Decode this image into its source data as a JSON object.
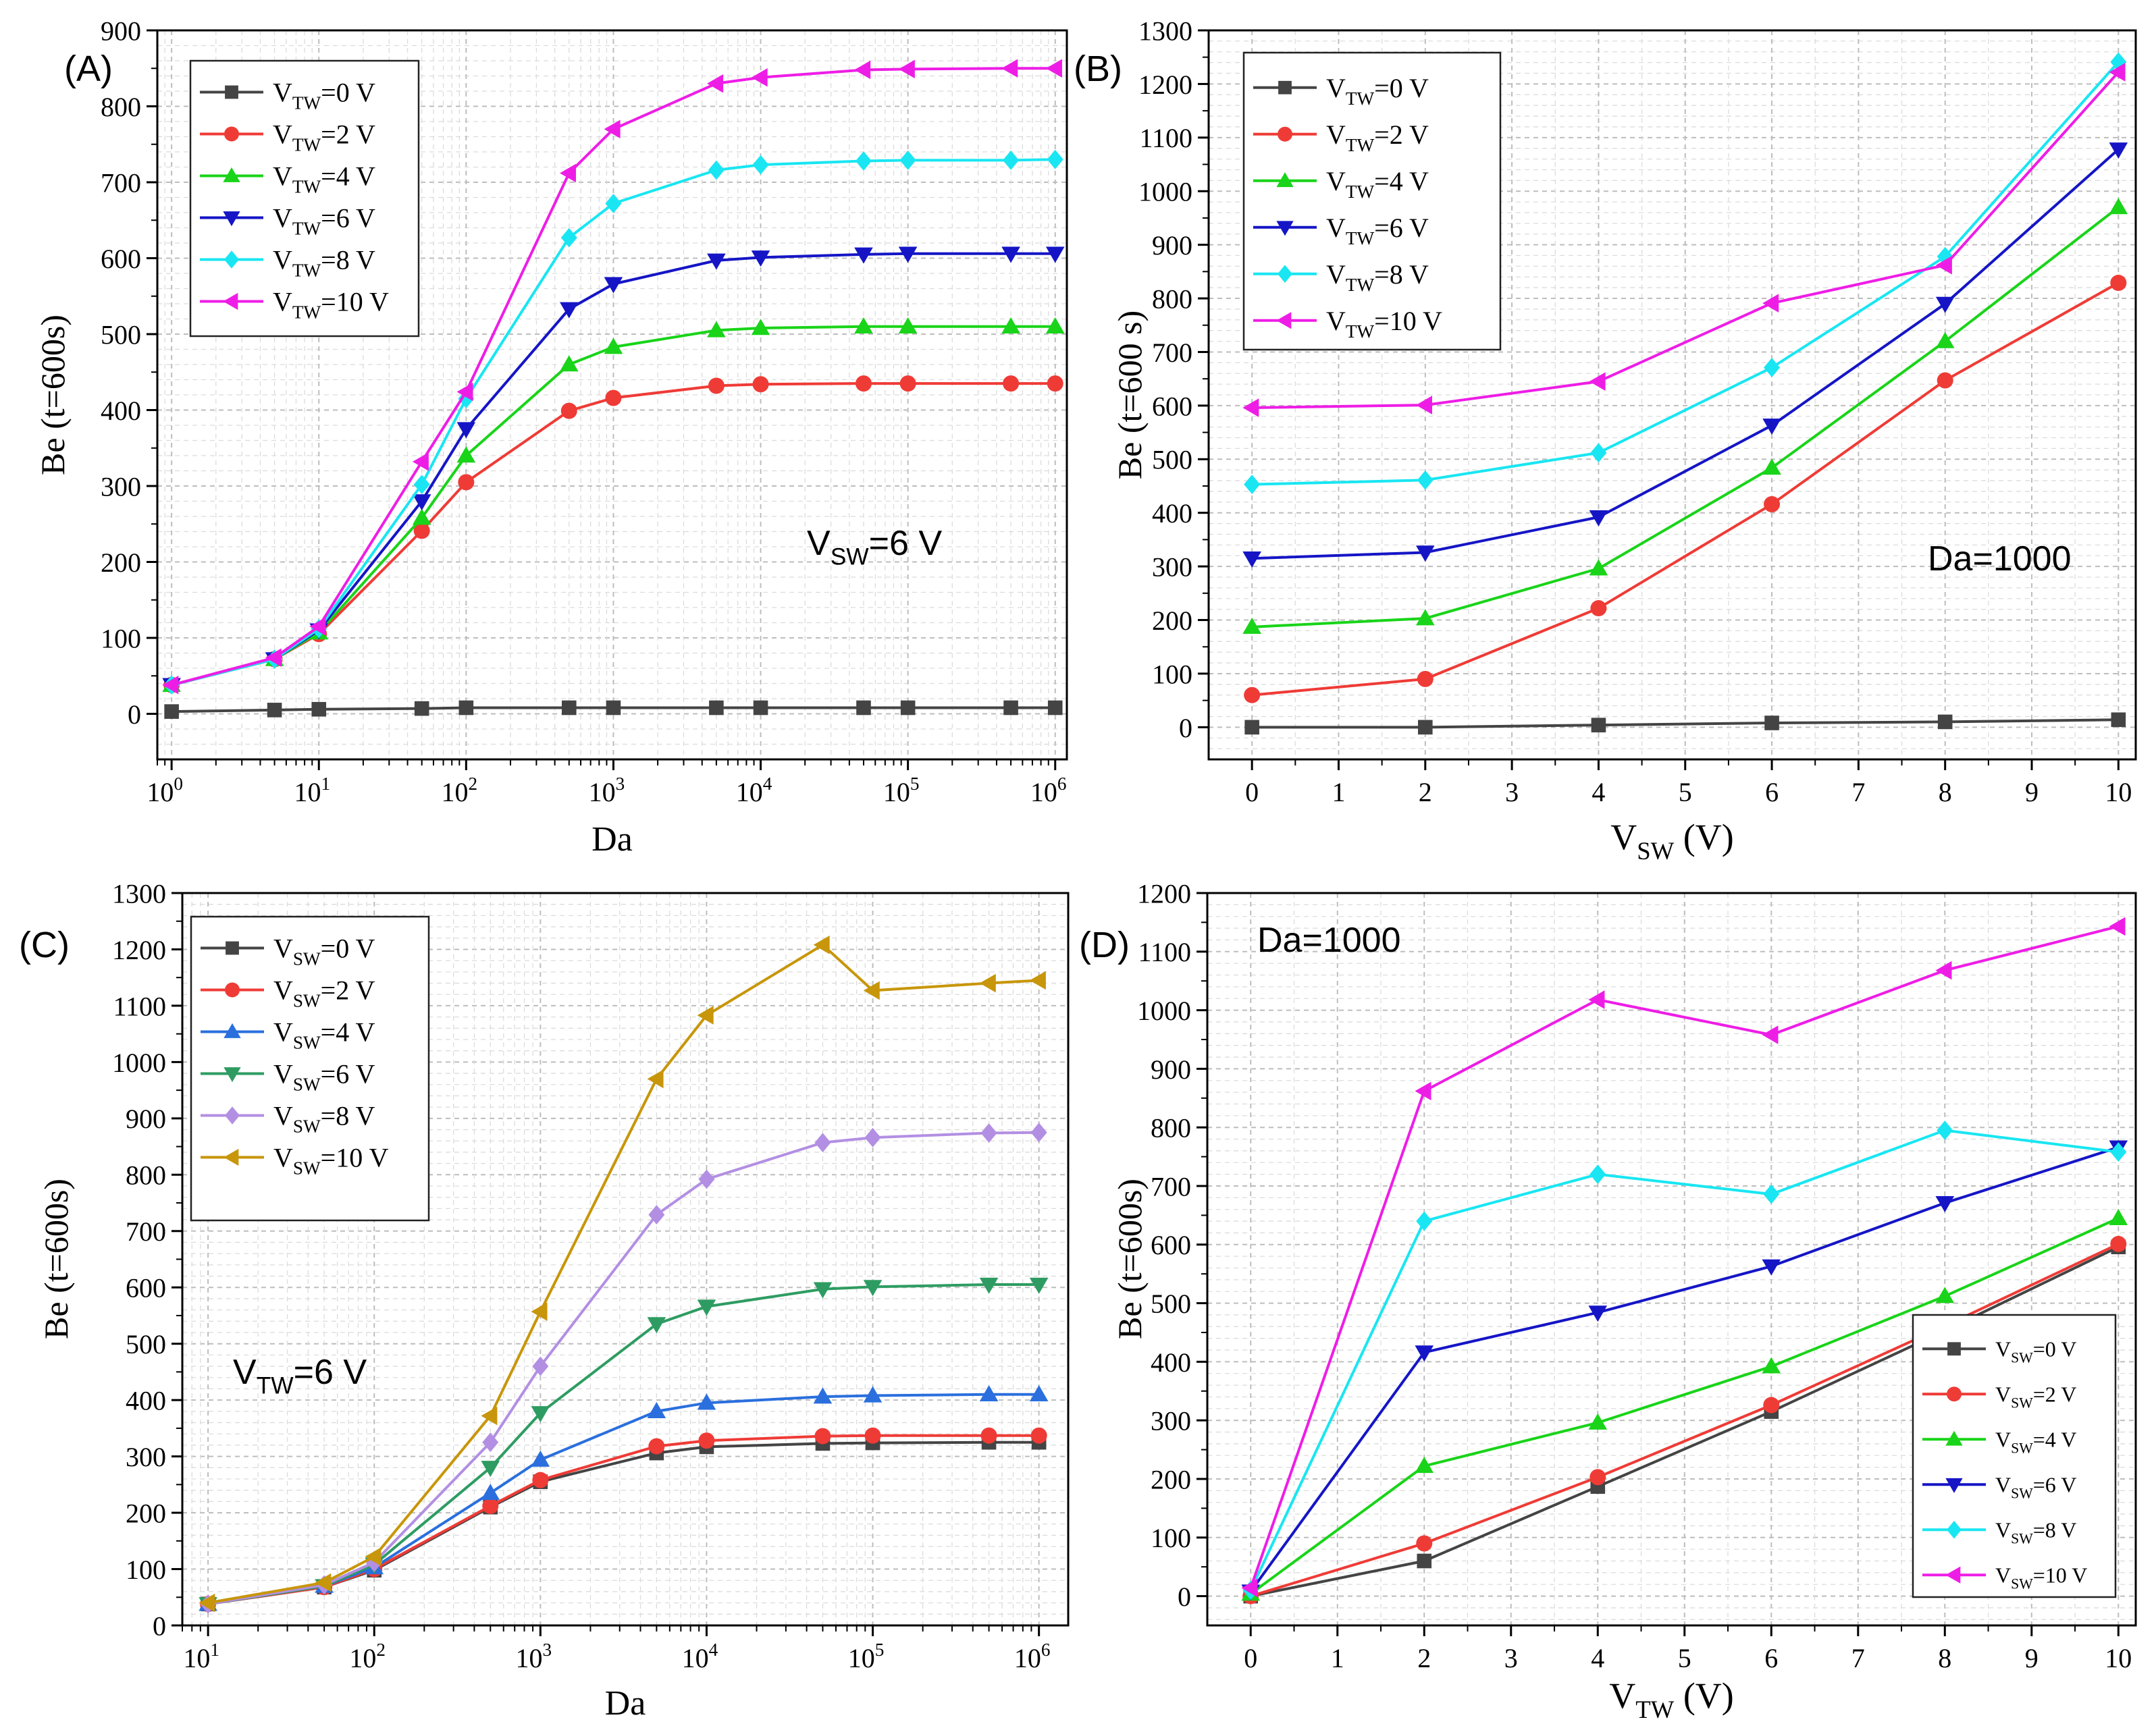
{
  "figure": {
    "description_panels": [
      "A",
      "B",
      "C",
      "D"
    ]
  },
  "chart_data": [
    {
      "id": "A",
      "type": "line",
      "panel_label": "(A)",
      "xscale": "log",
      "xlabel": "Da",
      "ylabel": "Be (t=600s)",
      "xlim": [
        0.8,
        1200000
      ],
      "ylim": [
        -60,
        900
      ],
      "yticks": [
        0,
        100,
        200,
        300,
        400,
        500,
        600,
        700,
        800,
        900
      ],
      "xticks": [
        1,
        10,
        100,
        1000,
        10000,
        100000,
        1000000
      ],
      "xtick_base": "10",
      "xtick_exponents": [
        "0",
        "1",
        "2",
        "3",
        "4",
        "5",
        "6"
      ],
      "annotation": {
        "main": "V",
        "sub": "SW",
        "rest": "=6 V"
      },
      "legend_position": "top-left",
      "x": [
        1,
        5,
        10,
        50,
        100,
        500,
        1000,
        5000,
        10000,
        50000,
        100000,
        500000,
        1000000
      ],
      "series": [
        {
          "name": "VTW=0 V",
          "legend_main": "V",
          "legend_sub": "TW",
          "legend_rest": "=0 V",
          "color": "#444444",
          "marker": "square",
          "values": [
            3,
            5,
            6,
            7,
            8,
            8,
            8,
            8,
            8,
            8,
            8,
            8,
            8
          ]
        },
        {
          "name": "VTW=2 V",
          "legend_main": "V",
          "legend_sub": "TW",
          "legend_rest": "=2 V",
          "color": "#ef3b36",
          "marker": "circle",
          "values": [
            38,
            72,
            105,
            241,
            305,
            399,
            416,
            432,
            434,
            435,
            435,
            435,
            435
          ]
        },
        {
          "name": "VTW=4 V",
          "legend_main": "V",
          "legend_sub": "TW",
          "legend_rest": "=4 V",
          "color": "#19d419",
          "marker": "triangle-up",
          "values": [
            38,
            72,
            107,
            258,
            340,
            460,
            483,
            505,
            508,
            510,
            510,
            510,
            510
          ]
        },
        {
          "name": "VTW=6 V",
          "legend_main": "V",
          "legend_sub": "TW",
          "legend_rest": "=6 V",
          "color": "#1515c6",
          "marker": "triangle-down",
          "values": [
            38,
            72,
            110,
            280,
            375,
            533,
            566,
            597,
            601,
            605,
            606,
            606,
            606
          ]
        },
        {
          "name": "VTW=8 V",
          "legend_main": "V",
          "legend_sub": "TW",
          "legend_rest": "=8 V",
          "color": "#19e6f2",
          "marker": "diamond",
          "values": [
            38,
            72,
            112,
            302,
            415,
            627,
            672,
            716,
            723,
            728,
            729,
            729,
            730
          ]
        },
        {
          "name": "VTW=10 V",
          "legend_main": "V",
          "legend_sub": "TW",
          "legend_rest": "=10 V",
          "color": "#ee1de6",
          "marker": "triangle-left",
          "values": [
            38,
            74,
            115,
            332,
            424,
            712,
            770,
            830,
            838,
            848,
            849,
            850,
            850
          ]
        }
      ]
    },
    {
      "id": "B",
      "type": "line",
      "panel_label": "(B)",
      "xscale": "linear",
      "xlabel": {
        "main": "V",
        "sub": "SW",
        "rest": " (V)"
      },
      "ylabel": "Be (t=600 s)",
      "xlim": [
        -0.5,
        10.2
      ],
      "ylim": [
        -60,
        1300
      ],
      "yticks": [
        0,
        100,
        200,
        300,
        400,
        500,
        600,
        700,
        800,
        900,
        1000,
        1100,
        1200,
        1300
      ],
      "xticks": [
        0,
        1,
        2,
        3,
        4,
        5,
        6,
        7,
        8,
        9,
        10
      ],
      "xtick_labels": [
        "0",
        "1",
        "2",
        "3",
        "4",
        "5",
        "6",
        "7",
        "8",
        "9",
        "10"
      ],
      "annotation": {
        "main": "Da=1000",
        "sub": "",
        "rest": ""
      },
      "legend_position": "top-left",
      "x": [
        0,
        2,
        4,
        6,
        8,
        10
      ],
      "series": [
        {
          "name": "VTW=0 V",
          "legend_main": "V",
          "legend_sub": "TW",
          "legend_rest": "=0 V",
          "color": "#444444",
          "marker": "square",
          "values": [
            0,
            0,
            4,
            8,
            10,
            14
          ]
        },
        {
          "name": "VTW=2 V",
          "legend_main": "V",
          "legend_sub": "TW",
          "legend_rest": "=2 V",
          "color": "#ef3b36",
          "marker": "circle",
          "values": [
            60,
            90,
            222,
            416,
            647,
            829
          ]
        },
        {
          "name": "VTW=4 V",
          "legend_main": "V",
          "legend_sub": "TW",
          "legend_rest": "=4 V",
          "color": "#19d419",
          "marker": "triangle-up",
          "values": [
            187,
            203,
            296,
            484,
            720,
            970
          ]
        },
        {
          "name": "VTW=6 V",
          "legend_main": "V",
          "legend_sub": "TW",
          "legend_rest": "=6 V",
          "color": "#1515c6",
          "marker": "triangle-down",
          "values": [
            315,
            326,
            392,
            563,
            790,
            1078
          ]
        },
        {
          "name": "VTW=8 V",
          "legend_main": "V",
          "legend_sub": "TW",
          "legend_rest": "=8 V",
          "color": "#19e6f2",
          "marker": "diamond",
          "values": [
            453,
            461,
            512,
            671,
            878,
            1241
          ]
        },
        {
          "name": "VTW=10 V",
          "legend_main": "V",
          "legend_sub": "TW",
          "legend_rest": "=10 V",
          "color": "#ee1de6",
          "marker": "triangle-left",
          "values": [
            596,
            601,
            645,
            791,
            862,
            1222
          ]
        }
      ]
    },
    {
      "id": "C",
      "type": "line",
      "panel_label": "(C)",
      "xscale": "log",
      "xlabel": "Da",
      "ylabel": "Be (t=600s)",
      "xlim": [
        7,
        1500000
      ],
      "ylim": [
        0,
        1300
      ],
      "yticks": [
        0,
        100,
        200,
        300,
        400,
        500,
        600,
        700,
        800,
        900,
        1000,
        1100,
        1200,
        1300
      ],
      "xticks": [
        10,
        100,
        1000,
        10000,
        100000,
        1000000
      ],
      "xtick_base": "10",
      "xtick_exponents": [
        "1",
        "2",
        "3",
        "4",
        "5",
        "6"
      ],
      "annotation": {
        "main": "V",
        "sub": "TW",
        "rest": "=6 V"
      },
      "legend_position": "top-left",
      "x": [
        10,
        50,
        100,
        500,
        1000,
        5000,
        10000,
        50000,
        100000,
        500000,
        1000000
      ],
      "series": [
        {
          "name": "VSW=0 V",
          "legend_main": "V",
          "legend_sub": "SW",
          "legend_rest": "=0 V",
          "color": "#444444",
          "marker": "square",
          "values": [
            38,
            68,
            98,
            210,
            255,
            306,
            317,
            323,
            324,
            325,
            325
          ]
        },
        {
          "name": "VSW=2 V",
          "legend_main": "V",
          "legend_sub": "SW",
          "legend_rest": "=2 V",
          "color": "#ef3b36",
          "marker": "circle",
          "values": [
            38,
            68,
            100,
            212,
            258,
            318,
            328,
            336,
            337,
            337,
            337
          ]
        },
        {
          "name": "VSW=4 V",
          "legend_main": "V",
          "legend_sub": "SW",
          "legend_rest": "=4 V",
          "color": "#2a6fdd",
          "marker": "triangle-up",
          "values": [
            38,
            70,
            103,
            235,
            294,
            380,
            395,
            406,
            408,
            410,
            410
          ]
        },
        {
          "name": "VSW=6 V",
          "legend_main": "V",
          "legend_sub": "SW",
          "legend_rest": "=6 V",
          "color": "#2e9c62",
          "marker": "triangle-down",
          "values": [
            38,
            70,
            108,
            280,
            377,
            535,
            566,
            597,
            601,
            605,
            605
          ]
        },
        {
          "name": "VSW=8 V",
          "legend_main": "V",
          "legend_sub": "SW",
          "legend_rest": "=8 V",
          "color": "#b38fe3",
          "marker": "diamond",
          "values": [
            38,
            72,
            112,
            325,
            460,
            729,
            792,
            857,
            866,
            874,
            875
          ]
        },
        {
          "name": "VSW=10 V",
          "legend_main": "V",
          "legend_sub": "SW",
          "legend_rest": "=10 V",
          "color": "#c8960a",
          "marker": "triangle-left",
          "values": [
            40,
            76,
            122,
            372,
            557,
            970,
            1083,
            1208,
            1127,
            1140,
            1145
          ]
        }
      ]
    },
    {
      "id": "D",
      "type": "line",
      "panel_label": "(D)",
      "xscale": "linear",
      "xlabel": {
        "main": "V",
        "sub": "TW",
        "rest": " (V)"
      },
      "ylabel": "Be (t=600s)",
      "xlim": [
        -0.5,
        10.2
      ],
      "ylim": [
        -50,
        1200
      ],
      "yticks": [
        0,
        100,
        200,
        300,
        400,
        500,
        600,
        700,
        800,
        900,
        1000,
        1100,
        1200
      ],
      "xticks": [
        0,
        1,
        2,
        3,
        4,
        5,
        6,
        7,
        8,
        9,
        10
      ],
      "xtick_labels": [
        "0",
        "1",
        "2",
        "3",
        "4",
        "5",
        "6",
        "7",
        "8",
        "9",
        "10"
      ],
      "annotation": {
        "main": "Da=1000",
        "sub": "",
        "rest": ""
      },
      "legend_position": "bottom-right",
      "x": [
        0,
        2,
        4,
        6,
        8,
        10
      ],
      "series": [
        {
          "name": "VSW=0 V",
          "legend_main": "V",
          "legend_sub": "SW",
          "legend_rest": "=0 V",
          "color": "#444444",
          "marker": "square",
          "values": [
            0,
            60,
            187,
            315,
            453,
            596
          ]
        },
        {
          "name": "VSW=2 V",
          "legend_main": "V",
          "legend_sub": "SW",
          "legend_rest": "=2 V",
          "color": "#ef3b36",
          "marker": "circle",
          "values": [
            0,
            90,
            203,
            326,
            461,
            601
          ]
        },
        {
          "name": "VSW=4 V",
          "legend_main": "V",
          "legend_sub": "SW",
          "legend_rest": "=4 V",
          "color": "#19d419",
          "marker": "triangle-up",
          "values": [
            4,
            222,
            296,
            392,
            512,
            645
          ]
        },
        {
          "name": "VSW=6 V",
          "legend_main": "V",
          "legend_sub": "SW",
          "legend_rest": "=6 V",
          "color": "#1515c6",
          "marker": "triangle-down",
          "values": [
            8,
            416,
            484,
            563,
            671,
            766
          ]
        },
        {
          "name": "VSW=8 V",
          "legend_main": "V",
          "legend_sub": "SW",
          "legend_rest": "=8 V",
          "color": "#19e6f2",
          "marker": "diamond",
          "values": [
            10,
            640,
            720,
            686,
            795,
            758
          ]
        },
        {
          "name": "VSW=10 V",
          "legend_main": "V",
          "legend_sub": "SW",
          "legend_rest": "=10 V",
          "color": "#ee1de6",
          "marker": "triangle-left",
          "values": [
            14,
            862,
            1018,
            958,
            1068,
            1143
          ]
        }
      ]
    }
  ]
}
